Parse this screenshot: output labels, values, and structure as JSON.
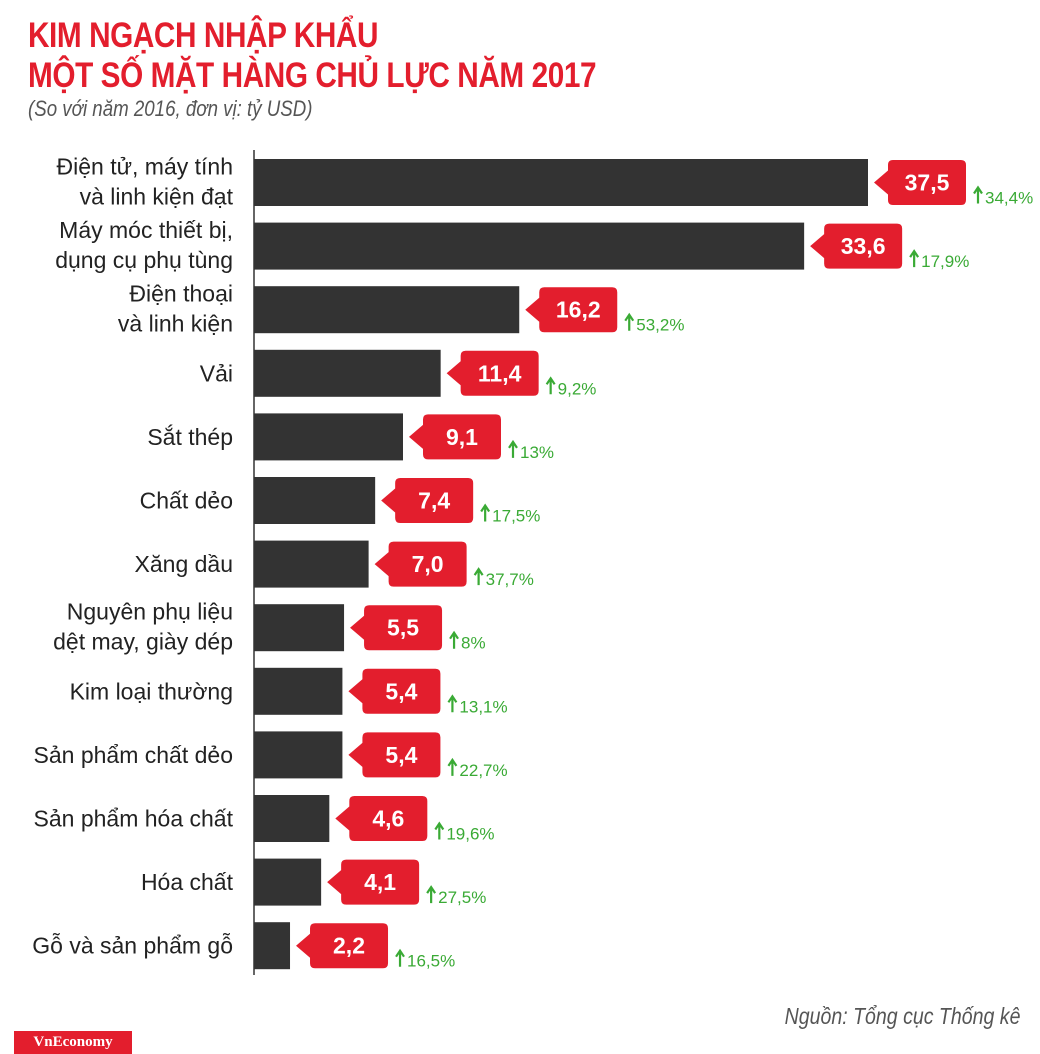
{
  "chart_data": {
    "type": "bar",
    "orientation": "horizontal",
    "title": [
      "KIM NGẠCH NHẬP KHẨU",
      "MỘT SỐ MẶT HÀNG CHỦ LỰC NĂM 2017"
    ],
    "subtitle": "(So với năm 2016, đơn vị: tỷ USD)",
    "categories": [
      [
        "Điện tử, máy tính",
        "và linh kiện đạt"
      ],
      [
        "Máy móc thiết bị,",
        "dụng cụ phụ tùng"
      ],
      [
        "Điện thoại",
        "và linh kiện"
      ],
      [
        "Vải"
      ],
      [
        "Sắt thép"
      ],
      [
        "Chất dẻo"
      ],
      [
        "Xăng dầu"
      ],
      [
        "Nguyên phụ liệu",
        "dệt may, giày dép"
      ],
      [
        "Kim loại thường"
      ],
      [
        "Sản phẩm chất dẻo"
      ],
      [
        "Sản phẩm hóa chất"
      ],
      [
        "Hóa chất"
      ],
      [
        "Gỗ và sản phẩm gỗ"
      ]
    ],
    "values": [
      37.5,
      33.6,
      16.2,
      11.4,
      9.1,
      7.4,
      7.0,
      5.5,
      5.4,
      5.4,
      4.6,
      4.1,
      2.2
    ],
    "value_labels": [
      "37,5",
      "33,6",
      "16,2",
      "11,4",
      "9,1",
      "7,4",
      "7,0",
      "5,5",
      "5,4",
      "5,4",
      "4,6",
      "4,1",
      "2,2"
    ],
    "change_labels": [
      "34,4%",
      "17,9%",
      "53,2%",
      "9,2%",
      "13%",
      "17,5%",
      "37,7%",
      "8%",
      "13,1%",
      "22,7%",
      "19,6%",
      "27,5%",
      "16,5%"
    ],
    "change_direction": "up",
    "xlim": [
      0,
      40
    ],
    "grid": false,
    "colors": {
      "bar": "#333333",
      "badge": "#e31e2d",
      "change": "#3aaa35",
      "title": "#e31e2d"
    }
  },
  "source": "Nguồn: Tổng cục Thống kê",
  "logo": "VnEconomy"
}
